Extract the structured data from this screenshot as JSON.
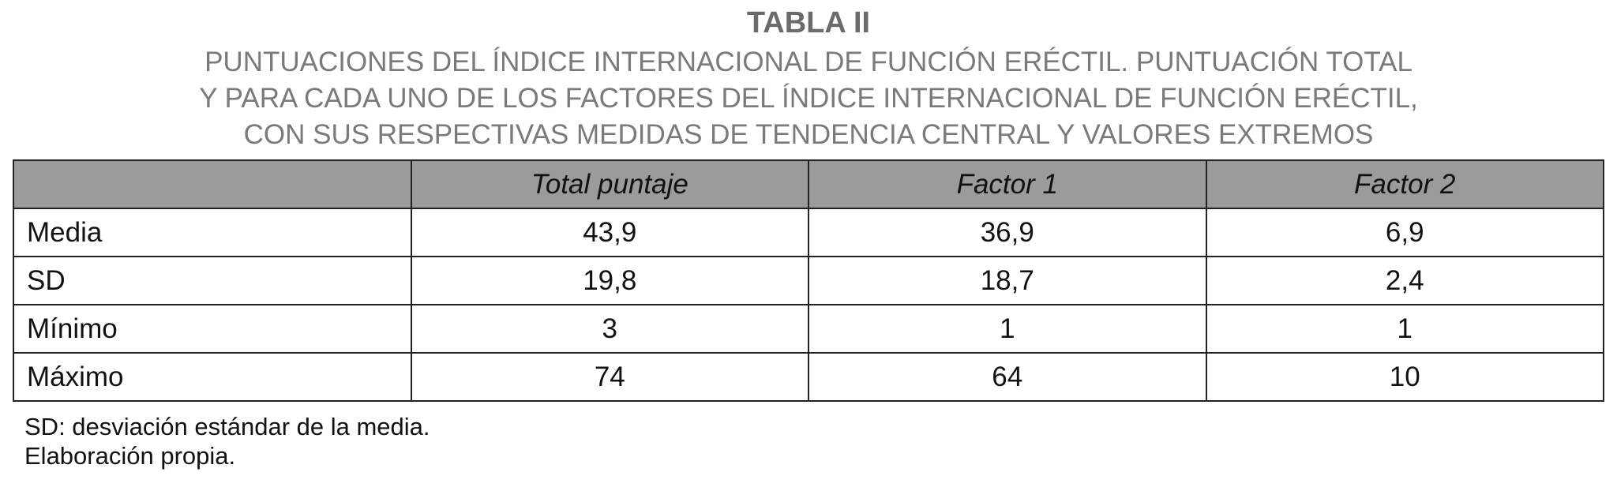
{
  "title": "TABLA II",
  "subtitle_lines": [
    "PUNTUACIONES DEL ÍNDICE INTERNACIONAL DE FUNCIÓN ERÉCTIL. PUNTUACIÓN TOTAL",
    "Y PARA CADA UNO DE LOS FACTORES DEL ÍNDICE INTERNACIONAL DE FUNCIÓN ERÉCTIL,",
    "CON SUS RESPECTIVAS MEDIDAS DE TENDENCIA CENTRAL Y VALORES EXTREMOS"
  ],
  "table": {
    "header_bg": "#9b9b9b",
    "columns": [
      "",
      "Total puntaje",
      "Factor 1",
      "Factor 2"
    ],
    "rows": [
      [
        "Media",
        "43,9",
        "36,9",
        "6,9"
      ],
      [
        "SD",
        "19,8",
        "18,7",
        "2,4"
      ],
      [
        "Mínimo",
        "3",
        "1",
        "1"
      ],
      [
        "Máximo",
        "74",
        "64",
        "10"
      ]
    ]
  },
  "footnotes": [
    "SD: desviación estándar de la media.",
    "Elaboración propia."
  ]
}
